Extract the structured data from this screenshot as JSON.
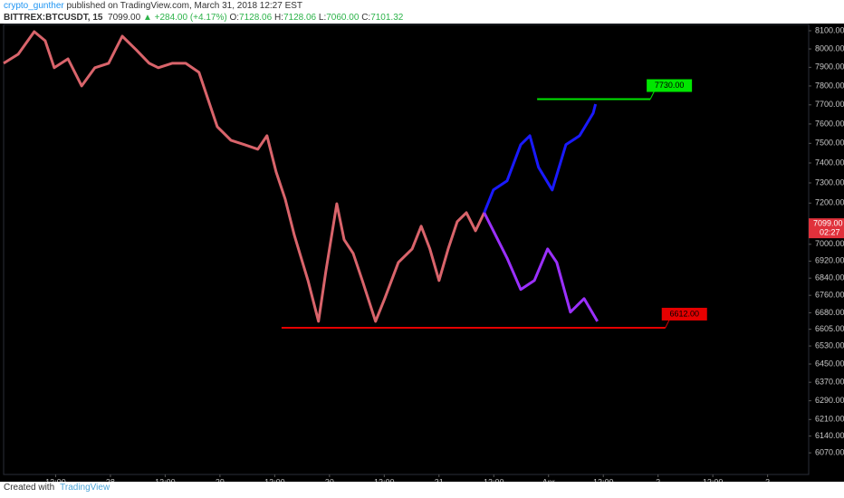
{
  "header": {
    "author": "crypto_gunther",
    "published": "published on TradingView.com, March 31, 2018 12:27 EST",
    "symbol": "BITTREX:BTCUSDT, 15",
    "price": "7099.00",
    "change": "▲ +284.00 (+4.17%)",
    "ohlc": [
      {
        "key": "O:",
        "value": "7128.06"
      },
      {
        "key": "H:",
        "value": "7128.06"
      },
      {
        "key": "L:",
        "value": "7060.00"
      },
      {
        "key": "C:",
        "value": "7101.32"
      }
    ]
  },
  "chart_data": {
    "type": "line",
    "log_y": true,
    "xlim": [
      -23.4,
      153
    ],
    "ylim": [
      5981,
      8135
    ],
    "xticks": [
      {
        "value": -12,
        "label": "12:00"
      },
      {
        "value": 0,
        "label": "28"
      },
      {
        "value": 12,
        "label": "12:00"
      },
      {
        "value": 24,
        "label": "29"
      },
      {
        "value": 36,
        "label": "12:00"
      },
      {
        "value": 48,
        "label": "30"
      },
      {
        "value": 60,
        "label": "12:00"
      },
      {
        "value": 72,
        "label": "31"
      },
      {
        "value": 84,
        "label": "12:00"
      },
      {
        "value": 96,
        "label": "Apr"
      },
      {
        "value": 108,
        "label": "12:00"
      },
      {
        "value": 120,
        "label": "2"
      },
      {
        "value": 132,
        "label": "12:00"
      },
      {
        "value": 144,
        "label": "3"
      }
    ],
    "yticks": [
      {
        "value": 8100,
        "label": "8100.00"
      },
      {
        "value": 8000,
        "label": "8000.00"
      },
      {
        "value": 7900,
        "label": "7900.00"
      },
      {
        "value": 7800,
        "label": "7800.00"
      },
      {
        "value": 7700,
        "label": "7700.00"
      },
      {
        "value": 7600,
        "label": "7600.00"
      },
      {
        "value": 7500,
        "label": "7500.00"
      },
      {
        "value": 7400,
        "label": "7400.00"
      },
      {
        "value": 7300,
        "label": "7300.00"
      },
      {
        "value": 7200,
        "label": "7200.00"
      },
      {
        "value": 7100,
        "label": "7100.00"
      },
      {
        "value": 7000,
        "label": "7000.00"
      },
      {
        "value": 6920,
        "label": "6920.00"
      },
      {
        "value": 6840,
        "label": "6840.00"
      },
      {
        "value": 6760,
        "label": "6760.00"
      },
      {
        "value": 6680,
        "label": "6680.00"
      },
      {
        "value": 6605,
        "label": "6605.00"
      },
      {
        "value": 6530,
        "label": "6530.00"
      },
      {
        "value": 6450,
        "label": "6450.00"
      },
      {
        "value": 6370,
        "label": "6370.00"
      },
      {
        "value": 6290,
        "label": "6290.00"
      },
      {
        "value": 6210,
        "label": "6210.00"
      },
      {
        "value": 6140,
        "label": "6140.00"
      },
      {
        "value": 6070,
        "label": "6070.00"
      }
    ],
    "series": [
      {
        "color": "#d9646b",
        "x": [
          -23.4,
          -20.2,
          -16.7,
          -14.3,
          -12.3,
          -9.3,
          -6.3,
          -3.4,
          -0.4,
          2.6,
          5.6,
          8.5,
          10.5,
          13.5,
          16.5,
          19.4,
          21.4,
          23.4,
          26.4,
          29.4,
          32.3,
          34.3,
          36.3,
          38.3,
          40.3,
          43.3,
          45.6,
          47.2,
          49.6,
          51.2,
          53.2,
          55.2,
          58.1,
          60.1,
          63.1,
          66.1,
          68.1,
          70,
          72,
          74,
          76,
          78,
          80,
          81.9
        ],
        "values": [
          7922,
          7971,
          8095,
          8045,
          7898,
          7946,
          7800,
          7898,
          7922,
          8070,
          7996,
          7922,
          7898,
          7922,
          7922,
          7873,
          7728,
          7586,
          7516,
          7493,
          7470,
          7539,
          7355,
          7220,
          7044,
          6829,
          6641,
          6871,
          7197,
          7022,
          6957,
          6829,
          6641,
          6745,
          6914,
          6978,
          7087,
          6978,
          6829,
          6978,
          7109,
          7153,
          7065,
          7153
        ]
      },
      {
        "color": "#1a1aff",
        "x": [
          81.9,
          83.9,
          86.9,
          89.9,
          91.9,
          93.8,
          96.8,
          99.8,
          102.8,
          105.8,
          106.3
        ],
        "values": [
          7153,
          7265,
          7310,
          7493,
          7539,
          7378,
          7265,
          7493,
          7539,
          7657,
          7704
        ]
      },
      {
        "color": "#9b30ff",
        "x": [
          81.9,
          83.9,
          86.9,
          89.9,
          92.9,
          95.8,
          97.8,
          100.8,
          103.8,
          106.7
        ],
        "values": [
          7153,
          7065,
          6935,
          6787,
          6829,
          6978,
          6914,
          6683,
          6745,
          6641
        ]
      }
    ],
    "levels": [
      {
        "value": 7730,
        "label": "7730.00",
        "color": "#00e600",
        "xrange": [
          93.5,
          118.3
        ]
      },
      {
        "value": 6612,
        "label": "6612.00",
        "color": "#e60000",
        "xrange": [
          37.5,
          121.6
        ]
      }
    ],
    "last_price": {
      "value": 7099,
      "label": "7099.00",
      "countdown": "02:27"
    }
  },
  "footer": {
    "created": "Created with",
    "brand": "TradingView"
  }
}
